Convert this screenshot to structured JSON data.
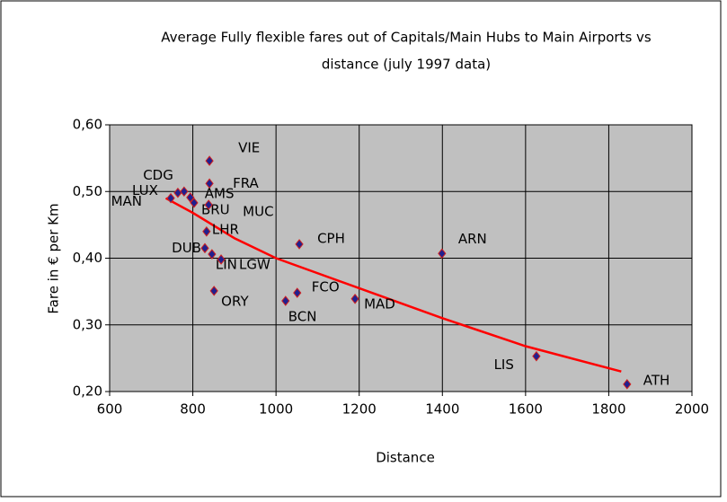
{
  "chart_data": {
    "type": "scatter",
    "title": [
      "Average Fully flexible fares out of Capitals/Main Hubs to Main Airports vs",
      "distance (july 1997 data)"
    ],
    "x_label": "Distance",
    "y_label": "Fare in € per Km",
    "xlim": [
      600,
      2000
    ],
    "xticks": [
      600,
      800,
      1000,
      1200,
      1400,
      1600,
      1800,
      2000
    ],
    "ylim": [
      0.2,
      0.6
    ],
    "yticks": [
      {
        "value": 0.2,
        "label": "0,20"
      },
      {
        "value": 0.3,
        "label": "0,30"
      },
      {
        "value": 0.4,
        "label": "0,40"
      },
      {
        "value": 0.5,
        "label": "0,50"
      },
      {
        "value": 0.6,
        "label": "0,60"
      }
    ],
    "grid": true,
    "background": "#c0c0c0",
    "color": "#202090",
    "labels": [
      "VIE",
      "FRA",
      "CDG",
      "LUX",
      "AMS",
      "MAN",
      "BRU",
      "MUC",
      "LHR",
      "DUB",
      "LIN",
      "LGW",
      "ORY",
      "BCN",
      "FCO",
      "CPH",
      "MAD",
      "ARN",
      "LIS",
      "ATH"
    ],
    "x": [
      840,
      840,
      779,
      764,
      794,
      747,
      803,
      838,
      833,
      829,
      846,
      868,
      851,
      1023,
      1051,
      1056,
      1190,
      1399,
      1626,
      1844
    ],
    "values": [
      0.546,
      0.512,
      0.5,
      0.498,
      0.491,
      0.49,
      0.483,
      0.48,
      0.44,
      0.415,
      0.406,
      0.398,
      0.351,
      0.336,
      0.348,
      0.421,
      0.339,
      0.407,
      0.253,
      0.211
    ],
    "trendline": {
      "color": "#ff0000",
      "x": [
        735,
        800,
        900,
        1000,
        1200,
        1400,
        1600,
        1830
      ],
      "values": [
        0.49,
        0.468,
        0.43,
        0.4,
        0.355,
        0.31,
        0.268,
        0.23
      ]
    }
  }
}
